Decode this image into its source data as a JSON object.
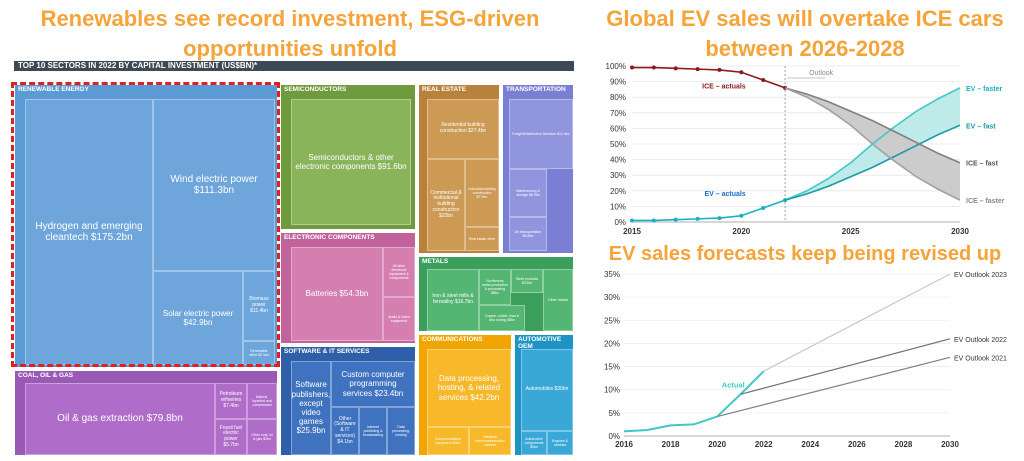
{
  "titles": {
    "left": "Renewables see record investment, ESG-driven opportunities unfold",
    "right_top": "Global EV sales will overtake ICE cars between 2026-2028",
    "right_bottom": "EV sales forecasts keep being revised up"
  },
  "treemap": {
    "header": "TOP 10 SECTORS IN 2022 BY CAPITAL INVESTMENT (US$BN)*",
    "sectors": {
      "renewable": "RENEWABLE ENERGY",
      "coal": "COAL, OIL & GAS",
      "semis": "SEMICONDUCTORS",
      "electronic": "ELECTRONIC COMPONENTS",
      "software": "SOFTWARE & IT SERVICES",
      "realestate": "REAL ESTATE",
      "transport": "TRANSPORTATION",
      "metals": "METALS",
      "comms": "COMMUNICATIONS",
      "auto": "AUTOMOTIVE OEM"
    },
    "cells": {
      "hydrogen": "Hydrogen and emerging cleantech $175.2bn",
      "wind": "Wind electric power $111.3bn",
      "solar": "Solar electric power $42.9bn",
      "biomass": "Biomass power $11.4bn",
      "renew_other": "Renewable other $2.1bn",
      "oilgas": "Oil & gas extraction $79.8bn",
      "petroleum": "Petroleum refineries $7.4bn",
      "natgas": "Natural, liquefied and compressed",
      "fossil": "Fossil fuel electric power $5.7bn",
      "coal_other": "Other coal, oil & gas $2bn",
      "semis_main": "Semiconductors & other electronic components $91.6bn",
      "batteries": "Batteries $54.3bn",
      "elec_a": "All other electronic equipment & components",
      "elec_b": "Audio & video equipment",
      "soft_pub": "Software publishers, except video games $25.9bn",
      "custom": "Custom computer programming services $23.4bn",
      "soft_other": "Other (Software & IT services) $4.1bn",
      "soft_c": "Internet publishing & broadcasting",
      "soft_d": "Data processing, hosting",
      "residential": "Residential building construction $27.4bn",
      "commercial": "Commercial & institutional building construction $22bn",
      "industrial": "Industrial building construction $7.9bn",
      "re_other": "Real estate other",
      "freight": "Freight/Distribution Services $12.6bn",
      "warehousing": "Warehousing & storage $8.5bn",
      "transport_other": "Air transportation $5.5bn",
      "iron": "Iron & steel mills & ferroalloy $16.7bn",
      "nonferrous": "Nonferrous metal production & processing $8bn",
      "steelprod": "Steel products $3.5bn",
      "copper": "Copper, nickel, lead & zinc mining $8bn",
      "metals_other": "Other metals",
      "datacenter": "Data processing, hosting, & related services $42.2bn",
      "comms_a": "Communications equipment $4bn",
      "comms_b": "Wireless telecommunication carriers",
      "automobiles": "Automobiles $30bn",
      "auto_a": "Automotive components $2bn",
      "auto_b": "Engines & turbines"
    }
  },
  "chart_data": [
    {
      "type": "line",
      "title": "Global EV sales will overtake ICE cars between 2026-2028",
      "x_ticks": [
        2015,
        2020,
        2025,
        2030
      ],
      "y_ticks": [
        "0%",
        "10%",
        "20%",
        "30%",
        "40%",
        "50%",
        "60%",
        "70%",
        "80%",
        "90%",
        "100%"
      ],
      "xlim": [
        2015,
        2030
      ],
      "ylim": [
        0,
        100
      ],
      "annotation": "Outlook",
      "outlook_start": 2022,
      "series": [
        {
          "name": "ICE – actuals",
          "color": "#8b1a1a",
          "x": [
            2015,
            2016,
            2017,
            2018,
            2019,
            2020,
            2021,
            2022
          ],
          "y": [
            99,
            99,
            98.5,
            98,
            97.5,
            96,
            91,
            86
          ]
        },
        {
          "name": "EV – actuals",
          "color": "#1ab0c4",
          "x": [
            2015,
            2016,
            2017,
            2018,
            2019,
            2020,
            2021,
            2022
          ],
          "y": [
            1,
            1,
            1.5,
            2,
            2.5,
            4,
            9,
            14
          ]
        },
        {
          "name": "EV – faster",
          "color": "#40c8c8",
          "x": [
            2022,
            2023,
            2024,
            2025,
            2026,
            2027,
            2028,
            2029,
            2030
          ],
          "y": [
            14,
            20,
            28,
            38,
            50,
            61,
            71,
            79,
            86
          ]
        },
        {
          "name": "EV – fast",
          "color": "#1a9aa6",
          "x": [
            2022,
            2023,
            2024,
            2025,
            2026,
            2027,
            2028,
            2029,
            2030
          ],
          "y": [
            14,
            18,
            23,
            29,
            35,
            42,
            49,
            56,
            62
          ]
        },
        {
          "name": "ICE – fast",
          "color": "#808080",
          "x": [
            2022,
            2023,
            2024,
            2025,
            2026,
            2027,
            2028,
            2029,
            2030
          ],
          "y": [
            86,
            82,
            77,
            71,
            65,
            58,
            51,
            44,
            38
          ]
        },
        {
          "name": "ICE – faster",
          "color": "#a0a0a0",
          "x": [
            2022,
            2023,
            2024,
            2025,
            2026,
            2027,
            2028,
            2029,
            2030
          ],
          "y": [
            86,
            80,
            72,
            62,
            50,
            39,
            29,
            21,
            14
          ]
        }
      ]
    },
    {
      "type": "line",
      "title": "EV sales forecasts keep being revised up",
      "x_ticks": [
        2016,
        2018,
        2020,
        2022,
        2024,
        2026,
        2028,
        2030
      ],
      "y_ticks": [
        "0%",
        "5%",
        "10%",
        "15%",
        "20%",
        "25%",
        "30%",
        "35%"
      ],
      "xlim": [
        2016,
        2030
      ],
      "ylim": [
        0,
        35
      ],
      "series": [
        {
          "name": "Actual",
          "color": "#40c8c8",
          "x": [
            2016,
            2017,
            2018,
            2019,
            2020,
            2021,
            2022
          ],
          "y": [
            1,
            1.3,
            2.3,
            2.5,
            4.2,
            9,
            14
          ]
        },
        {
          "name": "EV Outlook 2023",
          "color": "#c8c8c8",
          "x": [
            2022,
            2030
          ],
          "y": [
            14,
            35
          ]
        },
        {
          "name": "EV Outlook 2022",
          "color": "#707070",
          "x": [
            2021,
            2030
          ],
          "y": [
            9,
            21
          ]
        },
        {
          "name": "EV Outlook 2021",
          "color": "#808080",
          "x": [
            2020,
            2030
          ],
          "y": [
            4.2,
            17
          ]
        }
      ]
    }
  ]
}
